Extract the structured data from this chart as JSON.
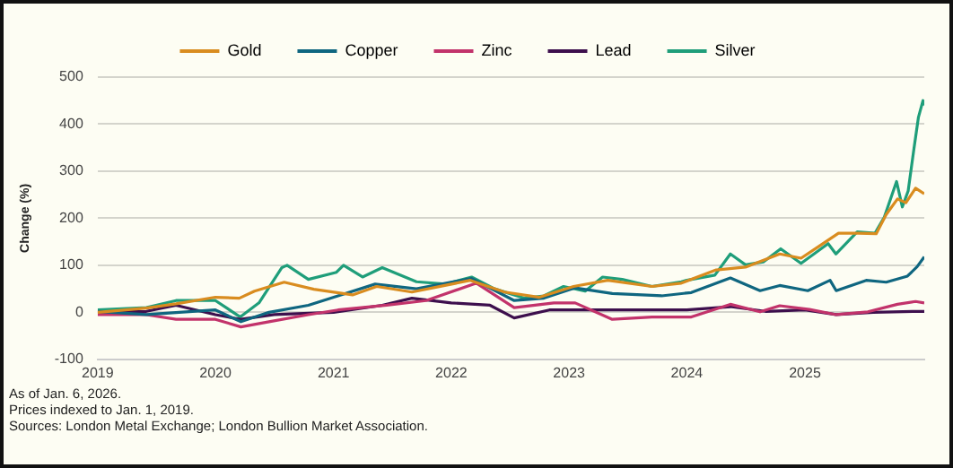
{
  "chart_data": {
    "type": "line",
    "ylabel": "Change (%)",
    "xlim": [
      "2019-01-01",
      "2026-01-06"
    ],
    "xticks": [
      {
        "value": "2019-01-01",
        "label": "2019"
      },
      {
        "value": "2020-01-01",
        "label": "2020"
      },
      {
        "value": "2021-01-01",
        "label": "2021"
      },
      {
        "value": "2022-01-01",
        "label": "2022"
      },
      {
        "value": "2023-01-01",
        "label": "2023"
      },
      {
        "value": "2024-01-01",
        "label": "2024"
      },
      {
        "value": "2025-01-01",
        "label": "2025"
      }
    ],
    "ylim": [
      -100,
      500
    ],
    "yticks": [
      -100,
      0,
      100,
      200,
      300,
      400,
      500
    ],
    "grid": "y",
    "legend": "top",
    "marker": "none",
    "line_style": "solid",
    "series": [
      {
        "name": "Gold",
        "color": "#d98c1f",
        "x": [
          "2019-01-01",
          "2019-06-01",
          "2019-09-01",
          "2020-01-01",
          "2020-03-15",
          "2020-05-01",
          "2020-08-01",
          "2020-11-01",
          "2021-03-01",
          "2021-05-15",
          "2021-09-01",
          "2022-03-01",
          "2022-06-15",
          "2022-10-01",
          "2023-01-15",
          "2023-05-01",
          "2023-09-15",
          "2023-12-15",
          "2024-04-01",
          "2024-07-01",
          "2024-10-15",
          "2024-12-20",
          "2025-02-15",
          "2025-04-15",
          "2025-06-15",
          "2025-08-10",
          "2025-09-10",
          "2025-10-15",
          "2025-11-10",
          "2025-12-10",
          "2026-01-06"
        ],
        "values": [
          0,
          9,
          18,
          32,
          30,
          45,
          64,
          49,
          37,
          55,
          43,
          68,
          43,
          32,
          55,
          68,
          55,
          62,
          90,
          96,
          124,
          115,
          141,
          168,
          168,
          167,
          208,
          241,
          233,
          264,
          252
        ]
      },
      {
        "name": "Copper",
        "color": "#0f6680",
        "x": [
          "2019-01-01",
          "2019-06-01",
          "2020-01-01",
          "2020-03-20",
          "2020-06-15",
          "2020-10-15",
          "2021-01-15",
          "2021-05-10",
          "2021-09-15",
          "2022-03-05",
          "2022-07-15",
          "2022-10-15",
          "2023-01-20",
          "2023-05-15",
          "2023-10-15",
          "2024-01-15",
          "2024-05-15",
          "2024-08-15",
          "2024-10-15",
          "2025-01-10",
          "2025-03-20",
          "2025-04-08",
          "2025-07-10",
          "2025-09-10",
          "2025-11-15",
          "2025-12-15",
          "2026-01-06"
        ],
        "values": [
          2,
          -5,
          5,
          -20,
          0,
          15,
          35,
          60,
          50,
          72,
          25,
          30,
          52,
          40,
          35,
          42,
          73,
          46,
          57,
          46,
          68,
          46,
          68,
          64,
          77,
          97,
          118
        ]
      },
      {
        "name": "Zinc",
        "color": "#c2336b",
        "x": [
          "2019-01-01",
          "2019-06-01",
          "2019-09-01",
          "2020-01-01",
          "2020-03-20",
          "2020-06-15",
          "2020-10-15",
          "2021-01-15",
          "2021-06-15",
          "2021-10-15",
          "2022-03-20",
          "2022-07-15",
          "2022-11-15",
          "2023-01-20",
          "2023-05-15",
          "2023-09-15",
          "2023-12-15",
          "2024-01-15",
          "2024-05-15",
          "2024-08-15",
          "2024-10-15",
          "2025-01-15",
          "2025-04-08",
          "2025-07-15",
          "2025-10-15",
          "2025-12-10",
          "2026-01-06"
        ],
        "values": [
          -5,
          -5,
          -15,
          -15,
          -31,
          -20,
          -5,
          5,
          15,
          25,
          62,
          10,
          20,
          20,
          -15,
          -10,
          -10,
          -10,
          17,
          1,
          14,
          6,
          -5,
          1,
          17,
          23,
          20
        ]
      },
      {
        "name": "Lead",
        "color": "#3d0f4d",
        "x": [
          "2019-01-01",
          "2019-06-01",
          "2019-09-01",
          "2020-01-01",
          "2020-03-20",
          "2020-07-01",
          "2021-01-01",
          "2021-06-01",
          "2021-09-01",
          "2022-01-01",
          "2022-05-01",
          "2022-07-15",
          "2022-11-01",
          "2023-03-01",
          "2023-08-01",
          "2024-01-01",
          "2024-05-15",
          "2024-09-01",
          "2025-01-01",
          "2025-04-08",
          "2025-08-01",
          "2025-12-01",
          "2026-01-06"
        ],
        "values": [
          0,
          2,
          15,
          -5,
          -15,
          -5,
          0,
          15,
          30,
          20,
          15,
          -12,
          5,
          5,
          5,
          5,
          12,
          2,
          5,
          -5,
          0,
          2,
          2
        ]
      },
      {
        "name": "Silver",
        "color": "#1f9e7a",
        "x": [
          "2019-01-01",
          "2019-06-01",
          "2019-09-01",
          "2020-01-01",
          "2020-03-18",
          "2020-05-15",
          "2020-07-25",
          "2020-08-10",
          "2020-10-15",
          "2021-01-10",
          "2021-02-01",
          "2021-04-01",
          "2021-06-01",
          "2021-09-15",
          "2021-12-15",
          "2022-03-05",
          "2022-05-15",
          "2022-08-15",
          "2022-10-15",
          "2022-12-15",
          "2023-02-20",
          "2023-04-15",
          "2023-06-15",
          "2023-09-15",
          "2023-12-15",
          "2024-01-01",
          "2024-03-28",
          "2024-05-15",
          "2024-07-01",
          "2024-08-25",
          "2024-10-18",
          "2024-12-20",
          "2025-03-14",
          "2025-04-07",
          "2025-06-12",
          "2025-08-06",
          "2025-09-04",
          "2025-10-12",
          "2025-10-30",
          "2025-11-17",
          "2025-12-05",
          "2025-12-19",
          "2026-01-02",
          "2026-01-06"
        ],
        "values": [
          5,
          10,
          25,
          25,
          -10,
          20,
          95,
          100,
          70,
          85,
          100,
          75,
          95,
          65,
          60,
          75,
          50,
          30,
          35,
          55,
          45,
          75,
          70,
          55,
          65,
          68,
          79,
          124,
          101,
          107,
          135,
          104,
          146,
          124,
          171,
          168,
          202,
          278,
          224,
          258,
          348,
          415,
          450,
          440
        ]
      }
    ],
    "annotations": [
      "As of Jan. 6, 2026.",
      "Prices indexed to Jan. 1, 2019.",
      "Sources: London Metal Exchange; London Bullion Market Association."
    ]
  }
}
